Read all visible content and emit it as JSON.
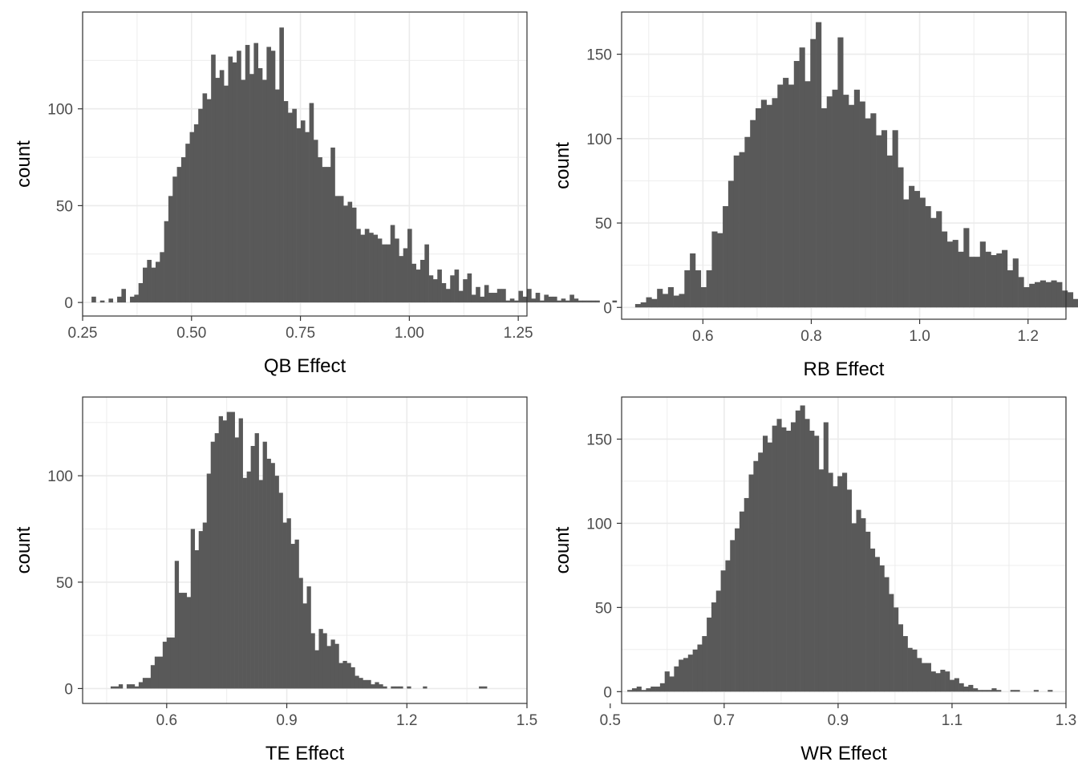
{
  "colors": {
    "bar": "#595959",
    "grid": "#ebebeb",
    "panel_border": "#333333",
    "tick_text": "#4d4d4d",
    "background": "#ffffff"
  },
  "chart_data": [
    {
      "type": "histogram",
      "xlabel": "QB Effect",
      "ylabel": "count",
      "xlim": [
        0.25,
        1.27
      ],
      "ylim": [
        -7,
        150
      ],
      "xticks": [
        0.25,
        0.5,
        0.75,
        1.0,
        1.25
      ],
      "xtick_labels": [
        "0.25",
        "0.50",
        "0.75",
        "1.00",
        "1.25"
      ],
      "yticks": [
        0,
        50,
        100
      ],
      "ytick_labels": [
        "0",
        "50",
        "100"
      ],
      "bin_start": 0.2705,
      "bin_width": 0.0098,
      "counts": [
        3,
        0,
        1,
        0,
        2,
        0,
        3,
        7,
        0,
        3,
        4,
        10,
        18,
        22,
        18,
        21,
        26,
        42,
        55,
        65,
        70,
        75,
        82,
        88,
        92,
        100,
        108,
        105,
        128,
        116,
        120,
        112,
        127,
        124,
        130,
        115,
        133,
        118,
        134,
        121,
        115,
        132,
        130,
        110,
        142,
        104,
        98,
        100,
        90,
        94,
        88,
        103,
        84,
        75,
        70,
        70,
        80,
        55,
        55,
        50,
        52,
        49,
        38,
        35,
        38,
        36,
        35,
        33,
        30,
        30,
        40,
        33,
        24,
        28,
        38,
        20,
        17,
        22,
        30,
        14,
        12,
        17,
        10,
        7,
        14,
        17,
        6,
        12,
        15,
        4,
        8,
        3,
        9,
        5,
        5,
        7,
        7,
        1,
        2,
        1,
        6,
        3,
        7,
        2,
        5,
        1,
        4,
        3,
        3,
        1,
        2,
        1,
        4,
        2,
        1,
        1,
        1,
        1,
        1,
        0,
        0,
        0,
        1
      ]
    },
    {
      "type": "histogram",
      "xlabel": "RB Effect",
      "ylabel": "count",
      "xlim": [
        0.45,
        1.27
      ],
      "ylim": [
        -7,
        175
      ],
      "xticks": [
        0.6,
        0.8,
        1.0,
        1.2
      ],
      "xtick_labels": [
        "0.6",
        "0.8",
        "1.0",
        "1.2"
      ],
      "yticks": [
        0,
        50,
        100,
        150
      ],
      "ytick_labels": [
        "0",
        "50",
        "100",
        "150"
      ],
      "bin_start": 0.475,
      "bin_width": 0.0101,
      "counts": [
        2,
        3,
        6,
        5,
        11,
        8,
        12,
        7,
        8,
        22,
        32,
        22,
        12,
        22,
        45,
        44,
        60,
        75,
        90,
        92,
        101,
        111,
        118,
        123,
        120,
        124,
        132,
        136,
        132,
        146,
        154,
        134,
        159,
        169,
        118,
        125,
        129,
        160,
        126,
        120,
        129,
        122,
        112,
        115,
        102,
        105,
        90,
        105,
        83,
        64,
        72,
        69,
        65,
        60,
        53,
        57,
        45,
        39,
        40,
        33,
        47,
        30,
        30,
        39,
        33,
        31,
        32,
        34,
        22,
        29,
        18,
        12,
        14,
        15,
        16,
        15,
        16,
        15,
        10,
        9,
        5,
        5,
        2,
        1,
        4,
        3,
        3,
        4,
        1,
        2,
        1,
        1,
        1,
        0,
        1,
        0,
        1,
        0
      ]
    },
    {
      "type": "histogram",
      "xlabel": "TE Effect",
      "ylabel": "count",
      "xlim": [
        0.39,
        1.5
      ],
      "ylim": [
        -7,
        137
      ],
      "xticks": [
        0.6,
        0.9,
        1.2,
        1.5
      ],
      "xtick_labels": [
        "0.6",
        "0.9",
        "1.2",
        "1.5"
      ],
      "yticks": [
        0,
        50,
        100
      ],
      "ytick_labels": [
        "0",
        "50",
        "100"
      ],
      "bin_start": 0.45,
      "bin_width": 0.01,
      "counts": [
        0,
        1,
        1,
        2,
        0,
        2,
        2,
        1,
        3,
        5,
        5,
        11,
        15,
        15,
        22,
        24,
        24,
        60,
        45,
        45,
        43,
        75,
        65,
        74,
        78,
        101,
        116,
        120,
        128,
        126,
        130,
        130,
        118,
        127,
        99,
        102,
        114,
        120,
        98,
        116,
        108,
        106,
        100,
        92,
        78,
        80,
        68,
        70,
        52,
        40,
        48,
        26,
        18,
        28,
        26,
        20,
        23,
        21,
        12,
        13,
        12,
        10,
        6,
        5,
        4,
        4,
        2,
        3,
        2,
        1,
        0,
        1,
        1,
        1,
        0,
        1,
        0,
        0,
        0,
        1,
        0,
        0,
        0,
        0,
        0,
        0,
        0,
        0,
        0,
        0,
        0,
        0,
        0,
        1,
        1,
        0,
        0,
        0
      ]
    },
    {
      "type": "histogram",
      "xlabel": "WR Effect",
      "ylabel": "count",
      "xlim": [
        0.52,
        1.3
      ],
      "ylim": [
        -7,
        175
      ],
      "xticks": [
        0.5,
        0.7,
        0.9,
        1.1,
        1.3
      ],
      "xtick_labels": [
        "0.5",
        "0.7",
        "0.9",
        "1.1",
        "1.3"
      ],
      "yticks": [
        0,
        50,
        100,
        150
      ],
      "ytick_labels": [
        "0",
        "50",
        "100",
        "150"
      ],
      "bin_start": 0.53,
      "bin_width": 0.0082,
      "counts": [
        1,
        2,
        3,
        1,
        2,
        3,
        3,
        5,
        12,
        9,
        15,
        19,
        20,
        22,
        25,
        28,
        33,
        44,
        53,
        60,
        72,
        78,
        90,
        97,
        107,
        115,
        129,
        137,
        142,
        152,
        148,
        158,
        162,
        157,
        155,
        160,
        167,
        170,
        162,
        155,
        152,
        132,
        160,
        130,
        122,
        128,
        130,
        120,
        100,
        108,
        103,
        95,
        85,
        80,
        75,
        68,
        58,
        50,
        40,
        33,
        26,
        25,
        20,
        17,
        17,
        12,
        11,
        13,
        12,
        7,
        8,
        5,
        3,
        4,
        2,
        1,
        1,
        1,
        2,
        1,
        0,
        0,
        1,
        1,
        0,
        0,
        0,
        1,
        0,
        0,
        1
      ]
    }
  ]
}
